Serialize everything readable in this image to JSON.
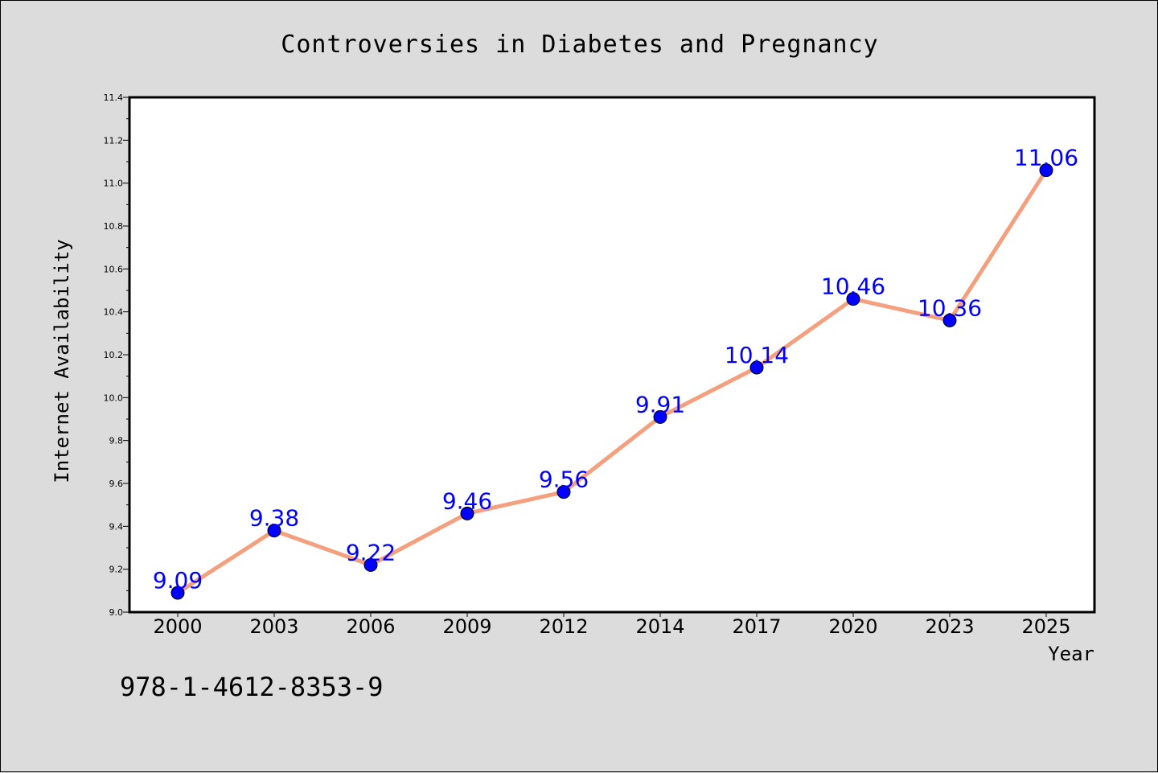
{
  "colors": {
    "background": "#dcdcdc",
    "plot_background": "#ffffff",
    "line": "#f4a07e",
    "marker": "#0000ff",
    "data_label": "#0000ff"
  },
  "footer": {
    "isbn": "978-1-4612-8353-9"
  },
  "chart_data": {
    "type": "line",
    "title": "Controversies in Diabetes and Pregnancy",
    "xlabel": "Year",
    "ylabel": "Internet Availability",
    "categories": [
      "2000",
      "2003",
      "2006",
      "2009",
      "2012",
      "2014",
      "2017",
      "2020",
      "2023",
      "2025"
    ],
    "series": [
      {
        "values": [
          9.09,
          9.38,
          9.22,
          9.46,
          9.56,
          9.91,
          10.14,
          10.46,
          10.36,
          11.06
        ],
        "labels": [
          "9.09",
          "9.38",
          "9.22",
          "9.46",
          "9.56",
          "9.91",
          "10.14",
          "10.46",
          "10.36",
          "11.06"
        ]
      }
    ],
    "ylim": [
      9.0,
      11.4
    ],
    "yticks": [
      "9.0",
      "9.2",
      "9.4",
      "9.6",
      "9.8",
      "10.0",
      "10.2",
      "10.4",
      "10.6",
      "10.8",
      "11.0",
      "11.2",
      "11.4"
    ],
    "grid": false,
    "legend": "none"
  }
}
